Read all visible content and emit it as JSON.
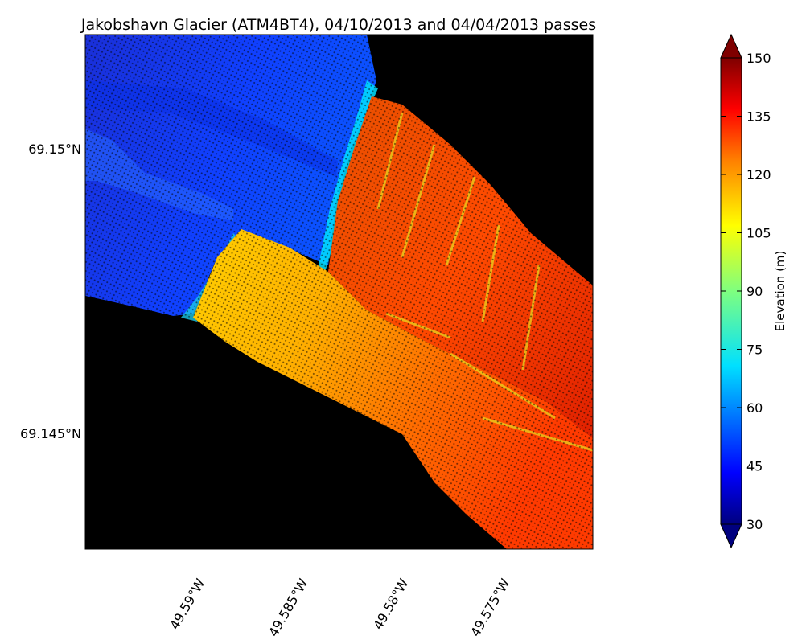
{
  "title": "Jakobshavn Glacier (ATM4BT4), 04/10/2013 and 04/04/2013 passes",
  "map": {
    "type": "elevation point-cloud map",
    "background": "#000000",
    "lat_ticks": [
      "69.15°N",
      "69.145°N"
    ],
    "lon_ticks": [
      "49.59°W",
      "49.585°W",
      "49.58°W",
      "49.575°W"
    ]
  },
  "colorbar": {
    "label": "Elevation (m)",
    "colormap": "jet",
    "min": 30,
    "max": 150,
    "extend": "both",
    "ticks": [
      "150",
      "135",
      "120",
      "105",
      "90",
      "75",
      "60",
      "45",
      "30"
    ],
    "colors": [
      "#00007f",
      "#0000ff",
      "#007fff",
      "#00ffff",
      "#7fff7f",
      "#ffff00",
      "#ff7f00",
      "#ff0000",
      "#7f0000"
    ]
  }
}
